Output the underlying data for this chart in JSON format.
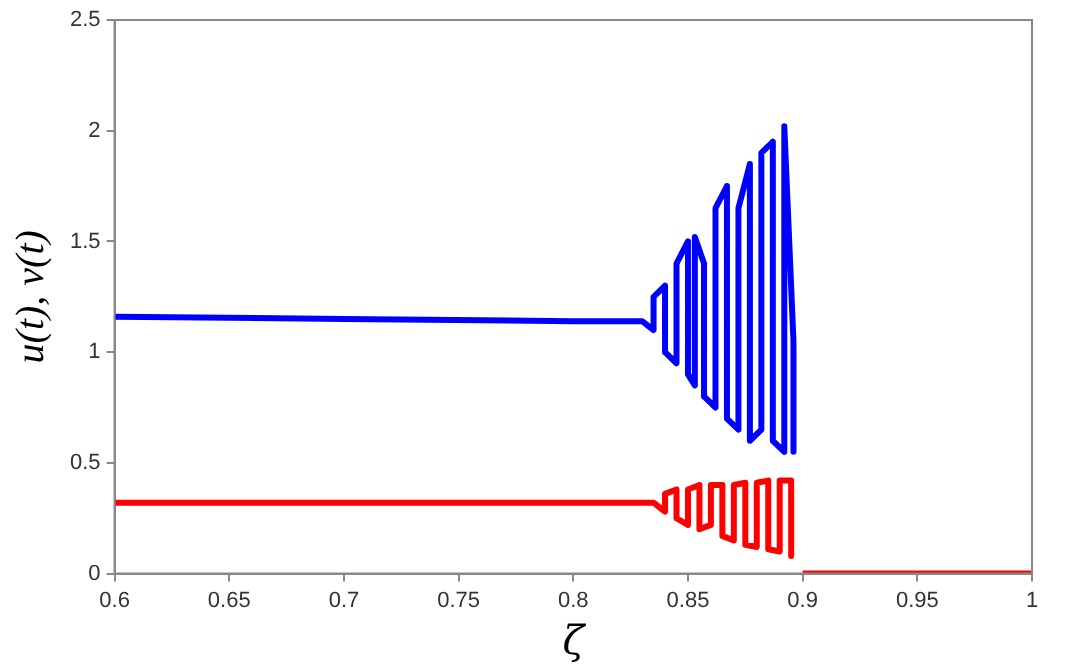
{
  "chart_data": {
    "type": "line",
    "xlabel": "ζ",
    "ylabel": "u(t), v(t)",
    "xlim": [
      0.6,
      1
    ],
    "xticks": [
      0.6,
      0.65,
      0.7,
      0.75,
      0.8,
      0.85,
      0.9,
      0.95,
      1
    ],
    "ylim": [
      0,
      2.5
    ],
    "yticks": [
      0,
      0.5,
      1,
      1.5,
      2,
      2.5
    ],
    "grid": false,
    "legend": false,
    "marker": "none",
    "line_style": "solid",
    "series": [
      {
        "color": "#0000ff",
        "x": [
          0.6,
          0.7,
          0.8,
          0.83,
          0.835,
          0.835,
          0.84,
          0.84,
          0.845,
          0.845,
          0.85,
          0.85,
          0.853,
          0.853,
          0.857,
          0.857,
          0.862,
          0.862,
          0.867,
          0.867,
          0.872,
          0.872,
          0.877,
          0.877,
          0.882,
          0.882,
          0.887,
          0.887,
          0.892,
          0.892,
          0.896,
          0.896
        ],
        "values": [
          1.16,
          1.15,
          1.14,
          1.14,
          1.1,
          1.25,
          1.3,
          1.0,
          0.95,
          1.4,
          1.5,
          0.9,
          0.85,
          1.52,
          1.4,
          0.8,
          0.75,
          1.65,
          1.75,
          0.7,
          0.65,
          1.65,
          1.85,
          0.6,
          0.65,
          1.9,
          1.95,
          0.6,
          0.55,
          2.02,
          1.05,
          0.55
        ]
      },
      {
        "color": "#ff0000",
        "x": [
          0.6,
          0.7,
          0.8,
          0.835,
          0.84,
          0.84,
          0.845,
          0.845,
          0.85,
          0.85,
          0.855,
          0.855,
          0.86,
          0.86,
          0.865,
          0.865,
          0.87,
          0.87,
          0.875,
          0.875,
          0.88,
          0.88,
          0.885,
          0.885,
          0.89,
          0.89,
          0.895,
          0.895,
          0.897,
          0.9,
          0.95,
          1
        ],
        "values": [
          0.32,
          0.32,
          0.32,
          0.32,
          0.28,
          0.36,
          0.38,
          0.25,
          0.22,
          0.38,
          0.4,
          0.2,
          0.22,
          0.4,
          0.4,
          0.17,
          0.15,
          0.4,
          0.41,
          0.13,
          0.12,
          0.41,
          0.42,
          0.11,
          0.1,
          0.42,
          0.42,
          0.08,
          null,
          0,
          0,
          0
        ]
      }
    ]
  }
}
